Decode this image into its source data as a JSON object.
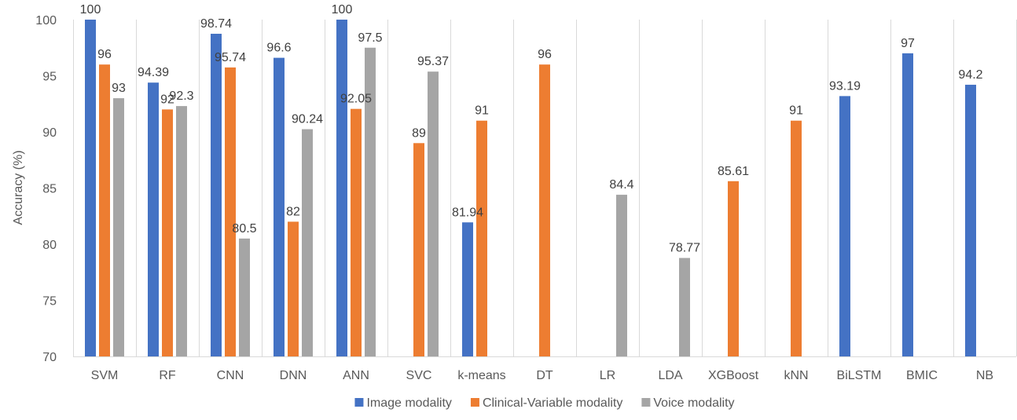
{
  "chart_data": {
    "type": "bar",
    "title": "",
    "xlabel": "",
    "ylabel": "Accuracy (%)",
    "ylim": [
      70,
      100
    ],
    "yticks": [
      70,
      75,
      80,
      85,
      90,
      95,
      100
    ],
    "grid": "vertical separators between categories",
    "legend_position": "bottom",
    "categories": [
      "SVM",
      "RF",
      "CNN",
      "DNN",
      "ANN",
      "SVC",
      "k-means",
      "DT",
      "LR",
      "LDA",
      "XGBoost",
      "kNN",
      "BiLSTM",
      "BMIC",
      "NB"
    ],
    "series": [
      {
        "name": "Image modality",
        "color": "#4472C4",
        "values": [
          100,
          94.39,
          98.74,
          96.6,
          100,
          null,
          81.94,
          null,
          null,
          null,
          null,
          null,
          93.19,
          97,
          94.2
        ],
        "labels": [
          "100",
          "94.39",
          "98.74",
          "96.6",
          "100",
          null,
          "81.94",
          null,
          null,
          null,
          null,
          null,
          "93.19",
          "97",
          "94.2"
        ]
      },
      {
        "name": "Clinical-Variable modality",
        "color": "#ED7D31",
        "values": [
          96,
          92,
          95.74,
          82,
          92.05,
          89,
          91,
          96,
          null,
          null,
          85.61,
          91,
          null,
          null,
          null
        ],
        "labels": [
          "96",
          "92",
          "95.74",
          "82",
          "92.05",
          "89",
          "91",
          "96",
          null,
          null,
          "85.61",
          "91",
          null,
          null,
          null
        ]
      },
      {
        "name": "Voice modality",
        "color": "#A5A5A5",
        "values": [
          93,
          92.3,
          80.5,
          90.24,
          97.5,
          95.37,
          null,
          null,
          84.4,
          78.77,
          null,
          null,
          null,
          null,
          null
        ],
        "labels": [
          "93",
          "92.3",
          "80.5",
          "90.24",
          "97.5",
          "95.37",
          null,
          null,
          "84.4",
          "78.77",
          null,
          null,
          null,
          null,
          null
        ]
      }
    ]
  }
}
